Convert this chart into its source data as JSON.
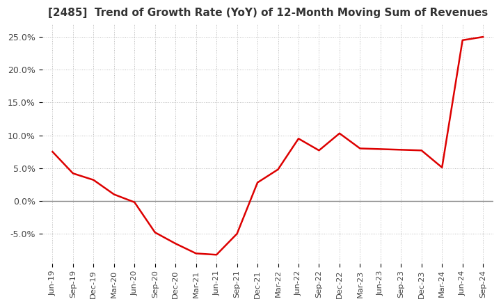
{
  "title": "[2485]  Trend of Growth Rate (YoY) of 12-Month Moving Sum of Revenues",
  "title_fontsize": 11,
  "line_color": "#dd0000",
  "background_color": "#ffffff",
  "grid_color": "#bbbbbb",
  "ylim": [
    -0.095,
    0.27
  ],
  "yticks": [
    -0.05,
    0.0,
    0.05,
    0.1,
    0.15,
    0.2,
    0.25
  ],
  "ytick_labels": [
    "-5.0%",
    "0.0%",
    "5.0%",
    "10.0%",
    "15.0%",
    "20.0%",
    "25.0%"
  ],
  "dates": [
    "Jun-19",
    "Sep-19",
    "Dec-19",
    "Mar-20",
    "Jun-20",
    "Sep-20",
    "Dec-20",
    "Mar-21",
    "Jun-21",
    "Sep-21",
    "Dec-21",
    "Mar-22",
    "Jun-22",
    "Sep-22",
    "Dec-22",
    "Mar-23",
    "Jun-23",
    "Sep-23",
    "Dec-23",
    "Mar-24",
    "Jun-24",
    "Sep-24"
  ],
  "values": [
    0.075,
    0.042,
    0.032,
    0.01,
    -0.002,
    -0.048,
    -0.065,
    -0.08,
    -0.082,
    -0.05,
    0.028,
    0.048,
    0.095,
    0.077,
    0.103,
    0.08,
    0.079,
    0.078,
    0.077,
    0.051,
    0.245,
    0.25
  ]
}
